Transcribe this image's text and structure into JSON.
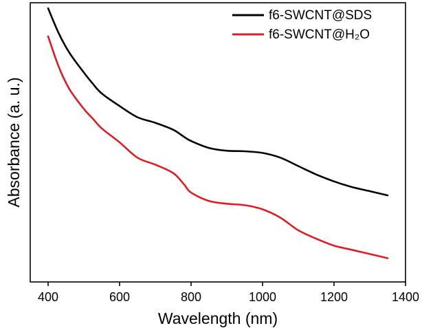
{
  "chart_data": {
    "type": "line",
    "xlabel": "Wavelength (nm)",
    "ylabel": "Absorbance (a. u.)",
    "xlim": [
      350,
      1400
    ],
    "ylim": [
      0,
      1.0
    ],
    "xticks": [
      400,
      600,
      800,
      1000,
      1200,
      1400
    ],
    "yticks_visible": false,
    "grid": false,
    "legend_position": "top-right",
    "series": [
      {
        "name": "f6-SWCNT@SDS",
        "color": "#000000",
        "x": [
          400,
          430,
          460,
          500,
          525,
          550,
          600,
          650,
          700,
          750,
          780,
          800,
          850,
          900,
          950,
          1000,
          1050,
          1100,
          1150,
          1200,
          1250,
          1300,
          1350
        ],
        "y": [
          0.98,
          0.89,
          0.82,
          0.75,
          0.71,
          0.675,
          0.63,
          0.59,
          0.57,
          0.545,
          0.52,
          0.505,
          0.48,
          0.47,
          0.468,
          0.462,
          0.445,
          0.415,
          0.385,
          0.36,
          0.34,
          0.325,
          0.31
        ]
      },
      {
        "name": "f6-SWCNT@H₂O",
        "color": "#e01b24",
        "x": [
          400,
          430,
          460,
          500,
          525,
          550,
          600,
          650,
          700,
          750,
          780,
          800,
          850,
          900,
          950,
          1000,
          1050,
          1100,
          1150,
          1200,
          1250,
          1300,
          1350
        ],
        "y": [
          0.88,
          0.77,
          0.69,
          0.62,
          0.585,
          0.55,
          0.5,
          0.445,
          0.42,
          0.39,
          0.35,
          0.32,
          0.29,
          0.28,
          0.275,
          0.26,
          0.23,
          0.185,
          0.155,
          0.13,
          0.115,
          0.1,
          0.085
        ]
      }
    ]
  }
}
